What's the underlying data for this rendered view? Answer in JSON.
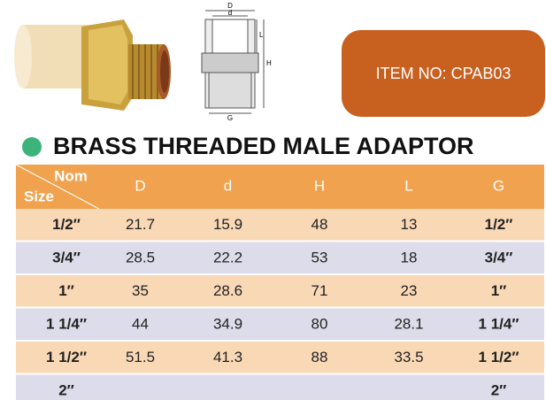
{
  "item_box": {
    "label": "ITEM NO: CPAB03"
  },
  "drawing_labels": {
    "D": "D",
    "d": "d",
    "L": "L",
    "H": "H",
    "G": "G"
  },
  "title": "BRASS THREADED MALE ADAPTOR",
  "table": {
    "header": {
      "nom": "Nom",
      "size": "Size",
      "columns": [
        "D",
        "d",
        "H",
        "L",
        "G"
      ]
    },
    "rows": [
      [
        "1/2″",
        "21.7",
        "15.9",
        "48",
        "13",
        "1/2″"
      ],
      [
        "3/4″",
        "28.5",
        "22.2",
        "53",
        "18",
        "3/4″"
      ],
      [
        "1″",
        "35",
        "28.6",
        "71",
        "23",
        "1″"
      ],
      [
        "1 1/4″",
        "44",
        "34.9",
        "80",
        "28.1",
        "1 1/4″"
      ],
      [
        "1 1/2″",
        "51.5",
        "41.3",
        "88",
        "33.5",
        "1 1/2″"
      ],
      [
        "2″",
        null,
        null,
        null,
        null,
        "2″"
      ]
    ]
  }
}
